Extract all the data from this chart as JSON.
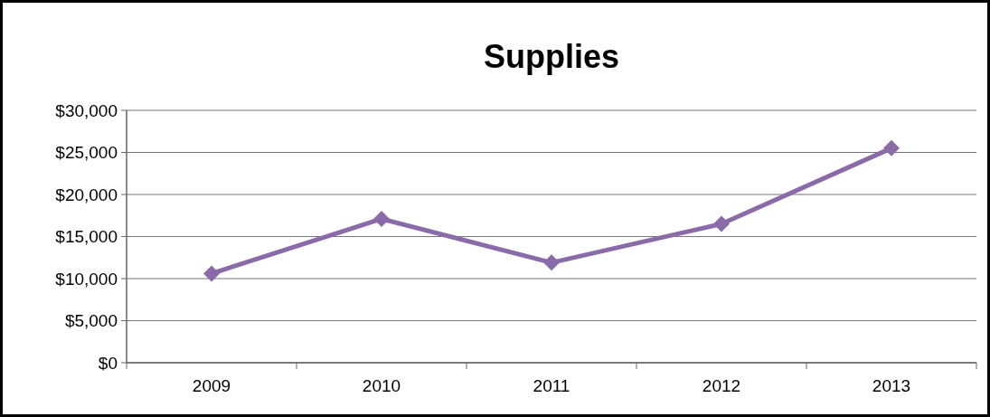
{
  "chart_data": {
    "type": "line",
    "title": "Supplies",
    "categories": [
      "2009",
      "2010",
      "2011",
      "2012",
      "2013"
    ],
    "series": [
      {
        "color": "#8a6aa8",
        "values": [
          10600,
          17100,
          11900,
          16500,
          25500
        ]
      }
    ],
    "ylim": [
      0,
      30000
    ],
    "yticks": [
      {
        "value": 0,
        "label": "$0"
      },
      {
        "value": 5000,
        "label": "$5,000"
      },
      {
        "value": 10000,
        "label": "$10,000"
      },
      {
        "value": 15000,
        "label": "$15,000"
      },
      {
        "value": 20000,
        "label": "$20,000"
      },
      {
        "value": 25000,
        "label": "$25,000"
      },
      {
        "value": 30000,
        "label": "$30,000"
      }
    ],
    "grid": "y",
    "marker": "diamond",
    "line_style": "solid"
  }
}
